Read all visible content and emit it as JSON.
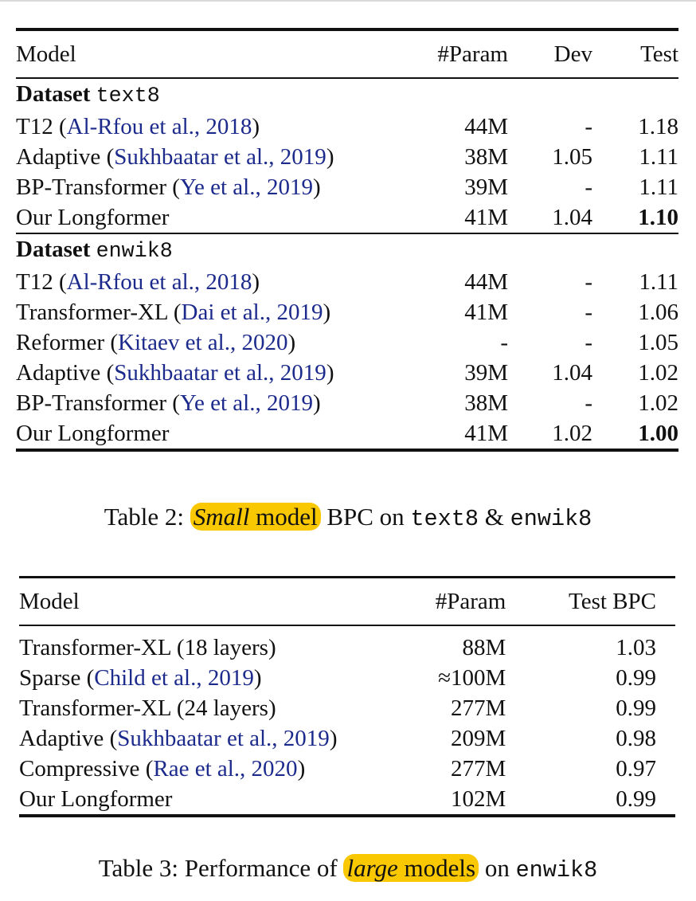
{
  "table2": {
    "headers": [
      "Model",
      "#Param",
      "Dev",
      "Test"
    ],
    "sections": [
      {
        "label_bold": "Dataset",
        "label_dataset": "text8",
        "rows": [
          {
            "model": "T12 ",
            "cite": "Al-Rfou et al., 2018",
            "param": "44M",
            "dev": "-",
            "test": "1.18",
            "bold": false
          },
          {
            "model": "Adaptive ",
            "cite": "Sukhbaatar et al., 2019",
            "param": "38M",
            "dev": "1.05",
            "test": "1.11",
            "bold": false
          },
          {
            "model": "BP-Transformer ",
            "cite": "Ye et al., 2019",
            "param": "39M",
            "dev": "-",
            "test": "1.11",
            "bold": false
          },
          {
            "model": "Our Longformer",
            "cite": "",
            "param": "41M",
            "dev": "1.04",
            "test": "1.10",
            "bold": true
          }
        ]
      },
      {
        "label_bold": "Dataset",
        "label_dataset": "enwik8",
        "rows": [
          {
            "model": "T12 ",
            "cite": "Al-Rfou et al., 2018",
            "param": "44M",
            "dev": "-",
            "test": "1.11",
            "bold": false
          },
          {
            "model": "Transformer-XL ",
            "cite": "Dai et al., 2019",
            "param": "41M",
            "dev": "-",
            "test": "1.06",
            "bold": false
          },
          {
            "model": "Reformer ",
            "cite": "Kitaev et al., 2020",
            "param": "-",
            "dev": "-",
            "test": "1.05",
            "bold": false
          },
          {
            "model": "Adaptive ",
            "cite": "Sukhbaatar et al., 2019",
            "param": "39M",
            "dev": "1.04",
            "test": "1.02",
            "bold": false
          },
          {
            "model": "BP-Transformer ",
            "cite": "Ye et al., 2019",
            "param": "38M",
            "dev": "-",
            "test": "1.02",
            "bold": false
          },
          {
            "model": "Our Longformer",
            "cite": "",
            "param": "41M",
            "dev": "1.02",
            "test": "1.00",
            "bold": true
          }
        ]
      }
    ],
    "caption": {
      "prefix": "Table 2: ",
      "hl_italic": "Small",
      "hl_rest": " model",
      "mid": " BPC on ",
      "code1": "text8",
      "amp": " & ",
      "code2": "enwik8"
    }
  },
  "table3": {
    "headers": [
      "Model",
      "#Param",
      "Test BPC"
    ],
    "rows": [
      {
        "model": "Transformer-XL (18 layers)",
        "cite": "",
        "param": "88M",
        "test": "1.03"
      },
      {
        "model": "Sparse ",
        "cite": "Child et al., 2019",
        "param": "≈100M",
        "test": "0.99"
      },
      {
        "model": "Transformer-XL (24 layers)",
        "cite": "",
        "param": "277M",
        "test": "0.99"
      },
      {
        "model": "Adaptive ",
        "cite": "Sukhbaatar et al., 2019",
        "param": "209M",
        "test": "0.98"
      },
      {
        "model": "Compressive ",
        "cite": "Rae et al., 2020",
        "param": "277M",
        "test": "0.97"
      },
      {
        "model": "Our Longformer",
        "cite": "",
        "param": "102M",
        "test": "0.99"
      }
    ],
    "caption": {
      "prefix": "Table 3: Performance of ",
      "hl_italic": "large",
      "hl_rest": " models",
      "mid": " on ",
      "code1": "enwik8"
    }
  }
}
